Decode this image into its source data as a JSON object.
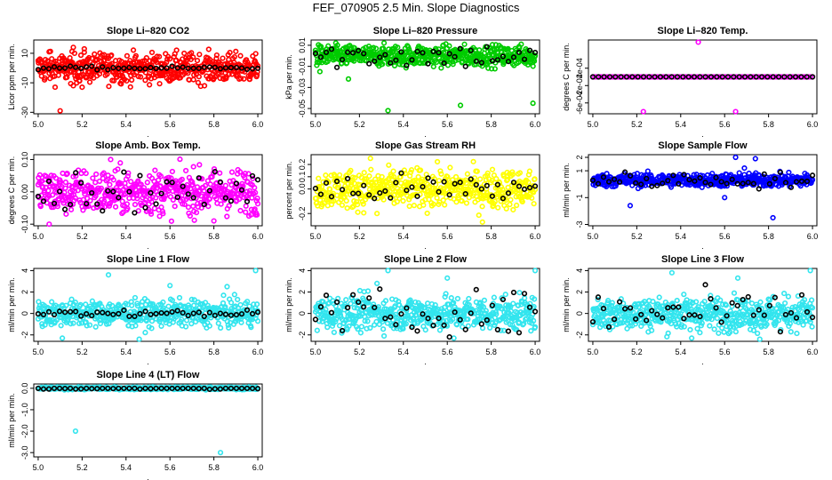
{
  "title": "FEF_070905  2.5 Min. Slope Diagnostics",
  "x_ticks": [
    "5.0",
    "5.2",
    "5.4",
    "5.6",
    "5.8",
    "6.0"
  ],
  "chart_data": [
    {
      "type": "scatter",
      "title": "Slope Li–820 CO2",
      "ylabel": "Licor ppm per min.",
      "color": "#ff0000",
      "xlim": [
        4.98,
        6.02
      ],
      "ylim": [
        -31,
        19
      ],
      "y_ticks": [
        "-30",
        "-10",
        "10"
      ],
      "y_tick_values": [
        -30,
        -10,
        10
      ],
      "center": 0,
      "spread": 5,
      "black_spread": 0.6,
      "outliers": [
        [
          5.1,
          -29
        ],
        [
          5.16,
          14
        ],
        [
          5.21,
          13
        ],
        [
          5.16,
          -12
        ],
        [
          5.05,
          11
        ],
        [
          5.2,
          -13
        ],
        [
          5.3,
          9
        ],
        [
          5.38,
          -9
        ]
      ]
    },
    {
      "type": "scatter",
      "title": "Slope Li–820 Pressure",
      "ylabel": "kPa per min.",
      "color": "#00cc00",
      "xlim": [
        4.98,
        6.02
      ],
      "ylim": [
        -0.055,
        0.015
      ],
      "y_ticks": [
        "0.01",
        "-0.01",
        "-0.03",
        "-0.05"
      ],
      "y_tick_values": [
        0.01,
        -0.01,
        -0.03,
        -0.05
      ],
      "center": 0,
      "spread": 0.005,
      "black_spread": 0.006,
      "outliers": [
        [
          5.33,
          -0.052
        ],
        [
          5.66,
          -0.047
        ],
        [
          5.99,
          -0.045
        ],
        [
          5.15,
          -0.022
        ],
        [
          5.02,
          -0.015
        ],
        [
          5.1,
          0.01
        ],
        [
          5.47,
          0.009
        ]
      ]
    },
    {
      "type": "scatter",
      "title": "Slope Li–820 Temp.",
      "ylabel": "degrees C per min.",
      "color": "#ff00ff",
      "xlim": [
        4.98,
        6.02
      ],
      "ylim": [
        -0.00085,
        0.00085
      ],
      "y_ticks": [
        "2e-04",
        "-2e-04",
        "-6e-04"
      ],
      "y_tick_values": [
        0.0002,
        -0.0002,
        -0.0006
      ],
      "extra_y_ticks": [
        "6e-04",
        "-4e-04",
        "-8e-04"
      ],
      "center": 0,
      "spread": 0,
      "black_spread": 0,
      "flat": true,
      "outliers": [
        [
          5.48,
          0.0008
        ],
        [
          5.23,
          -0.0008
        ],
        [
          5.65,
          -0.0008
        ]
      ]
    },
    {
      "type": "scatter",
      "title": "Slope Amb. Box Temp.",
      "ylabel": "degrees C per min.",
      "color": "#ff00ff",
      "xlim": [
        4.98,
        6.02
      ],
      "ylim": [
        -0.105,
        0.115
      ],
      "y_ticks": [
        "-0.10",
        "0.00",
        "0.10"
      ],
      "y_tick_values": [
        -0.1,
        0,
        0.1
      ],
      "center": 0,
      "spread": 0.035,
      "black_spread": 0.03,
      "outliers": [
        [
          5.05,
          -0.1
        ],
        [
          5.33,
          0.1
        ],
        [
          5.8,
          -0.09
        ]
      ]
    },
    {
      "type": "scatter",
      "title": "Slope Gas Stream RH",
      "ylabel": "percent per min.",
      "color": "#ffff00",
      "xlim": [
        4.98,
        6.02
      ],
      "ylim": [
        -0.3,
        0.28
      ],
      "y_ticks": [
        "-0.2",
        "0.0",
        "0.1",
        "0.2"
      ],
      "y_tick_values": [
        -0.2,
        0,
        0.1,
        0.2
      ],
      "extra_y_ticks": [
        "-0.1"
      ],
      "center": 0,
      "spread": 0.08,
      "black_spread": 0.06,
      "outliers": [
        [
          5.25,
          0.25
        ],
        [
          5.76,
          -0.27
        ],
        [
          5.28,
          -0.2
        ]
      ]
    },
    {
      "type": "scatter",
      "title": "Slope Sample Flow",
      "ylabel": "ml/min per min.",
      "color": "#0000ff",
      "xlim": [
        4.98,
        6.02
      ],
      "ylim": [
        -3.1,
        2.2
      ],
      "y_ticks": [
        "-3",
        "-1",
        "1",
        "2"
      ],
      "y_tick_values": [
        -3,
        -1,
        1,
        2
      ],
      "center": 0.3,
      "spread": 0.25,
      "black_spread": 0.3,
      "outliers": [
        [
          5.65,
          2.0
        ],
        [
          5.74,
          1.9
        ],
        [
          5.17,
          -1.6
        ],
        [
          5.82,
          -2.5
        ],
        [
          5.6,
          -1.0
        ],
        [
          5.69,
          1.2
        ]
      ]
    },
    {
      "type": "scatter",
      "title": "Slope Line 1 Flow",
      "ylabel": "ml/min per min.",
      "color": "#33e5ee",
      "xlim": [
        4.98,
        6.02
      ],
      "ylim": [
        -2.6,
        4.2
      ],
      "y_ticks": [
        "-2",
        "0",
        "2",
        "4"
      ],
      "y_tick_values": [
        -2,
        0,
        2,
        4
      ],
      "center": 0,
      "spread": 0.6,
      "black_spread": 0.15,
      "outliers": [
        [
          5.32,
          3.6
        ],
        [
          5.99,
          4.0
        ],
        [
          5.46,
          -2.4
        ],
        [
          5.11,
          -2.3
        ],
        [
          5.6,
          2.6
        ],
        [
          5.86,
          2.5
        ]
      ]
    },
    {
      "type": "scatter",
      "title": "Slope Line 2 Flow",
      "ylabel": "ml/min per min.",
      "color": "#33e5ee",
      "xlim": [
        4.98,
        6.02
      ],
      "ylim": [
        -2.6,
        4.2
      ],
      "y_ticks": [
        "-2",
        "0",
        "2",
        "4"
      ],
      "y_tick_values": [
        -2,
        0,
        2,
        4
      ],
      "center": 0,
      "spread": 0.8,
      "black_spread": 1.0,
      "outliers": [
        [
          5.33,
          4.0
        ],
        [
          6.0,
          4.0
        ],
        [
          5.6,
          3.3
        ],
        [
          5.63,
          -2.3
        ],
        [
          5.28,
          2.8
        ]
      ]
    },
    {
      "type": "scatter",
      "title": "Slope Line 3 Flow",
      "ylabel": "ml/min per min.",
      "color": "#33e5ee",
      "xlim": [
        4.98,
        6.02
      ],
      "ylim": [
        -2.6,
        4.2
      ],
      "y_ticks": [
        "-2",
        "0",
        "2",
        "4"
      ],
      "y_tick_values": [
        -2,
        0,
        2,
        4
      ],
      "center": 0,
      "spread": 0.8,
      "black_spread": 1.0,
      "outliers": [
        [
          5.36,
          3.8
        ],
        [
          5.99,
          4.0
        ],
        [
          5.66,
          3.3
        ],
        [
          5.45,
          -2.3
        ],
        [
          5.76,
          -2.4
        ]
      ]
    },
    {
      "type": "scatter",
      "title": "Slope Line 4 (LT) Flow",
      "ylabel": "ml/min per min.",
      "color": "#33e5ee",
      "xlim": [
        4.98,
        6.02
      ],
      "ylim": [
        -3.2,
        0.2
      ],
      "y_ticks": [
        "-3.0",
        "-2.0",
        "-1.0",
        "0.0"
      ],
      "y_tick_values": [
        -3,
        -2,
        -1,
        0
      ],
      "center": 0,
      "spread": 0.03,
      "black_spread": 0.03,
      "outliers": [
        [
          5.17,
          -2.0
        ],
        [
          5.83,
          -3.0
        ]
      ]
    }
  ]
}
